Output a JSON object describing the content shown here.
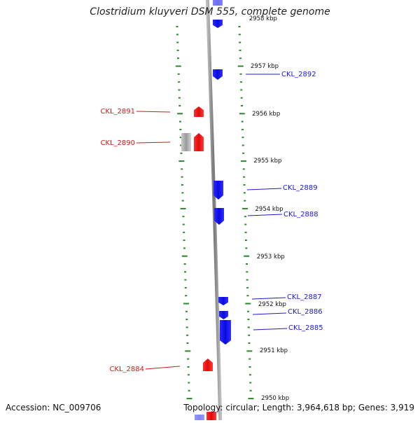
{
  "title": "Clostridium kluyveri DSM 555, complete genome",
  "accession": "Accession: NC_009706",
  "summary": "Topology: circular; Length: 3,964,618 bp; Genes: 3,919",
  "colors": {
    "forward_gene": "#1010ee",
    "reverse_gene": "#ee1111",
    "pseudo_gene": "#aaaaaa",
    "backbone": "#888888",
    "tick": "#2a8a2a",
    "forward_label": "#1a1ad0",
    "reverse_label": "#d01a1a"
  },
  "scale": [
    {
      "label": "2950 kbp",
      "kbp": 2950
    },
    {
      "label": "2951 kbp",
      "kbp": 2951
    },
    {
      "label": "2952 kbp",
      "kbp": 2952
    },
    {
      "label": "2953 kbp",
      "kbp": 2953
    },
    {
      "label": "2954 kbp",
      "kbp": 2954
    },
    {
      "label": "2955 kbp",
      "kbp": 2955
    },
    {
      "label": "2956 kbp",
      "kbp": 2956
    },
    {
      "label": "2957 kbp",
      "kbp": 2957
    },
    {
      "label": "2958 kbp",
      "kbp": 2958
    }
  ],
  "genes": [
    {
      "label": "CKL_2892",
      "strand": "forward"
    },
    {
      "label": "CKL_2891",
      "strand": "reverse"
    },
    {
      "label": "CKL_2890",
      "strand": "reverse"
    },
    {
      "label": "CKL_2889",
      "strand": "forward"
    },
    {
      "label": "CKL_2888",
      "strand": "forward"
    },
    {
      "label": "CKL_2887",
      "strand": "forward"
    },
    {
      "label": "CKL_2886",
      "strand": "forward"
    },
    {
      "label": "CKL_2885",
      "strand": "forward"
    },
    {
      "label": "CKL_2884",
      "strand": "reverse"
    }
  ]
}
